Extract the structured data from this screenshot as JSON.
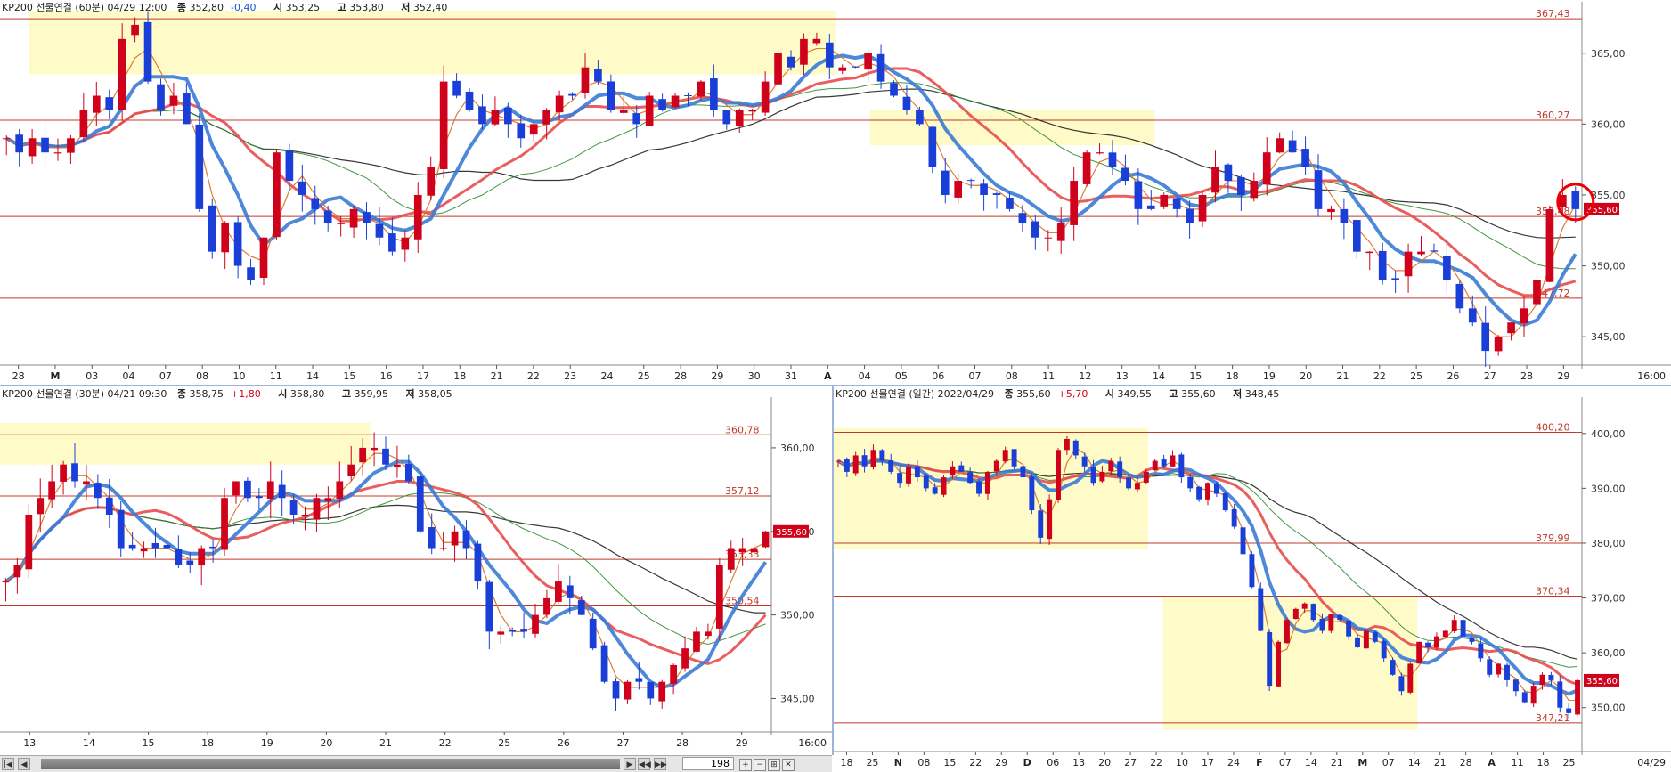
{
  "top": {
    "header": {
      "name": "KP200 선물연결 (60분) 04/29 12:00",
      "close_label": "종",
      "close": "352,80",
      "change": "-0,40",
      "open_label": "시",
      "open": "353,25",
      "high_label": "고",
      "high": "353,80",
      "low_label": "저",
      "low": "352,40"
    },
    "price_tag": "355,60",
    "corner_label": "16:00",
    "chart_data": {
      "type": "candlestick",
      "timeframe": "60분",
      "ylim": [
        343,
        368
      ],
      "y_ticks": [
        "345,00",
        "350,00",
        "355,00",
        "360,00",
        "365,00"
      ],
      "x_ticks": [
        "28",
        "M",
        "03",
        "04",
        "07",
        "08",
        "10",
        "11",
        "14",
        "15",
        "16",
        "17",
        "18",
        "21",
        "22",
        "23",
        "24",
        "25",
        "28",
        "29",
        "30",
        "31",
        "A",
        "04",
        "05",
        "06",
        "07",
        "08",
        "11",
        "12",
        "13",
        "14",
        "15",
        "18",
        "19",
        "20",
        "21",
        "22",
        "25",
        "26",
        "27",
        "28",
        "29"
      ],
      "levels": [
        {
          "value": 367.43,
          "label": "367,43"
        },
        {
          "value": 360.27,
          "label": "360,27"
        },
        {
          "value": 353.48,
          "label": "353,48"
        },
        {
          "value": 347.72,
          "label": "347,72"
        }
      ],
      "closes": [
        359,
        358,
        359,
        358,
        358,
        359,
        361,
        362,
        361,
        366,
        367,
        363,
        361,
        362,
        360,
        354,
        351,
        353,
        350,
        349,
        352,
        358,
        356,
        355,
        354,
        353,
        353,
        354,
        353,
        352,
        351,
        352,
        355,
        357,
        363,
        362,
        361,
        360,
        361,
        360,
        359,
        360,
        361,
        362,
        362,
        364,
        363,
        361,
        361,
        360,
        362,
        361,
        362,
        362,
        363,
        361,
        360,
        361,
        361,
        363,
        365,
        364,
        366,
        366,
        364,
        364,
        364,
        365,
        363,
        362,
        361,
        360,
        357,
        355,
        356,
        356,
        355,
        355,
        354,
        353,
        352,
        352,
        353,
        356,
        358,
        358,
        357,
        356,
        354,
        354,
        355,
        354,
        353,
        355,
        357,
        356,
        355,
        356,
        358,
        359,
        358,
        357,
        354,
        354,
        353,
        351,
        351,
        349,
        349,
        351,
        351,
        351,
        349,
        347,
        346,
        344,
        345,
        346,
        347,
        349,
        354,
        355,
        354
      ]
    }
  },
  "bottom_left": {
    "header": {
      "name": "KP200 선물연결 (30분) 04/21 09:30",
      "close_label": "종",
      "close": "358,75",
      "change": "+1,80",
      "open_label": "시",
      "open": "358,80",
      "high_label": "고",
      "high": "359,95",
      "low_label": "저",
      "low": "358,05"
    },
    "price_tag": "355,60",
    "corner_label": "16:00",
    "chart_data": {
      "type": "candlestick",
      "timeframe": "30분",
      "ylim": [
        343,
        362.5
      ],
      "y_ticks": [
        "345,00",
        "350,00",
        "355,00",
        "360,00"
      ],
      "x_ticks": [
        "13",
        "14",
        "15",
        "18",
        "19",
        "20",
        "21",
        "22",
        "25",
        "26",
        "27",
        "28",
        "29"
      ],
      "levels": [
        {
          "value": 360.78,
          "label": "360,78"
        },
        {
          "value": 357.12,
          "label": "357,12"
        },
        {
          "value": 353.33,
          "label": "353,33"
        },
        {
          "value": 350.54,
          "label": "350,54"
        }
      ],
      "closes": [
        352,
        353,
        356,
        357,
        358,
        359,
        358,
        358,
        357,
        356,
        354,
        354,
        354,
        354,
        354,
        353,
        353,
        354,
        354,
        357,
        358,
        357,
        357,
        358,
        357,
        356,
        356,
        357,
        357,
        358,
        359,
        360,
        360,
        359,
        359,
        358,
        355,
        354,
        354,
        355,
        354,
        352,
        349,
        349,
        349,
        349,
        350,
        351,
        352,
        351,
        350,
        348,
        346,
        345,
        346,
        346,
        345,
        346,
        347,
        348,
        349,
        349,
        353,
        354,
        354,
        354,
        355
      ]
    }
  },
  "bottom_right": {
    "header": {
      "name": "KP200 선물연결 (일간) 2022/04/29",
      "close_label": "종",
      "close": "355,60",
      "change": "+5,70",
      "open_label": "시",
      "open": "349,55",
      "high_label": "고",
      "high": "355,60",
      "low_label": "저",
      "low": "348,45"
    },
    "price_tag": "355,60",
    "corner_label": "04/29",
    "chart_data": {
      "type": "candlestick",
      "timeframe": "일간",
      "ylim": [
        342,
        405
      ],
      "y_ticks": [
        "350,00",
        "360,00",
        "370,00",
        "380,00",
        "390,00",
        "400,00"
      ],
      "x_ticks": [
        "18",
        "25",
        "N",
        "08",
        "15",
        "22",
        "29",
        "D",
        "06",
        "13",
        "20",
        "27",
        "22",
        "10",
        "17",
        "24",
        "F",
        "07",
        "14",
        "21",
        "M",
        "07",
        "14",
        "21",
        "28",
        "A",
        "11",
        "18",
        "25"
      ],
      "levels": [
        {
          "value": 400.2,
          "label": "400,20"
        },
        {
          "value": 379.99,
          "label": "379,99"
        },
        {
          "value": 370.34,
          "label": "370,34"
        },
        {
          "value": 347.21,
          "label": "347,21"
        }
      ],
      "closes": [
        395,
        393,
        396,
        394,
        397,
        395,
        393,
        391,
        394,
        392,
        390,
        389,
        392,
        394,
        393,
        391,
        389,
        393,
        395,
        397,
        394,
        392,
        386,
        381,
        388,
        397,
        399,
        396,
        394,
        391,
        393,
        395,
        392,
        390,
        391,
        393,
        395,
        394,
        396,
        392,
        390,
        388,
        391,
        389,
        386,
        383,
        378,
        372,
        364,
        354,
        362,
        366,
        368,
        369,
        366,
        364,
        367,
        366,
        363,
        361,
        364,
        362,
        359,
        356,
        353,
        358,
        362,
        361,
        363,
        364,
        366,
        363,
        362,
        359,
        356,
        358,
        355,
        353,
        351,
        354,
        356,
        355,
        350,
        349,
        355
      ]
    }
  },
  "scrollbar": {
    "bars": "198"
  },
  "colors": {
    "bg": "#ffffff",
    "up": "#d0021b",
    "down": "#1a3fd8",
    "level": "#c0392b",
    "highlight": "#fffbc8",
    "ma5": "#e48a2b",
    "ma20": "#b22222",
    "ma60": "#3a7bd5",
    "ma120": "#e84c4c",
    "ma200": "#2e8b2e",
    "ma300": "#222222"
  }
}
